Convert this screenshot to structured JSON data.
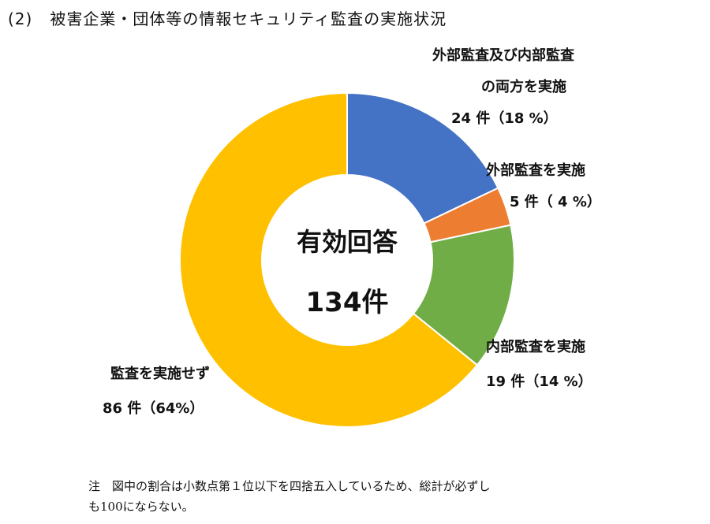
{
  "heading": {
    "number": "(2)",
    "text": "被害企業・団体等の情報セキュリティ監査の実施状況"
  },
  "chart_data": {
    "type": "pie",
    "donut": true,
    "center_label": {
      "title": "有効回答",
      "total": "134件"
    },
    "slices": [
      {
        "label": "外部監査及び内部監査の両方を実施",
        "label_lines": [
          "外部監査及び内部監査",
          "の両方を実施"
        ],
        "count": 24,
        "value_text": "24 件（18 %）",
        "percent": 18,
        "color": "#4472C4"
      },
      {
        "label": "外部監査を実施",
        "label_lines": [
          "外部監査を実施"
        ],
        "count": 5,
        "value_text": "5 件（ 4 %）",
        "percent": 4,
        "color": "#ED7D31"
      },
      {
        "label": "内部監査を実施",
        "label_lines": [
          "内部監査を実施"
        ],
        "count": 19,
        "value_text": "19 件（14 %）",
        "percent": 14,
        "color": "#70AD47"
      },
      {
        "label": "監査を実施せず",
        "label_lines": [
          "監査を実施せず"
        ],
        "count": 86,
        "value_text": "86 件（64%）",
        "percent": 64,
        "color": "#FFC000"
      }
    ],
    "total": 134
  },
  "note": {
    "lines": [
      "注　図中の割合は小数点第１位以下を四捨五入しているため、総計が必ずし",
      "も100にならない。"
    ]
  }
}
